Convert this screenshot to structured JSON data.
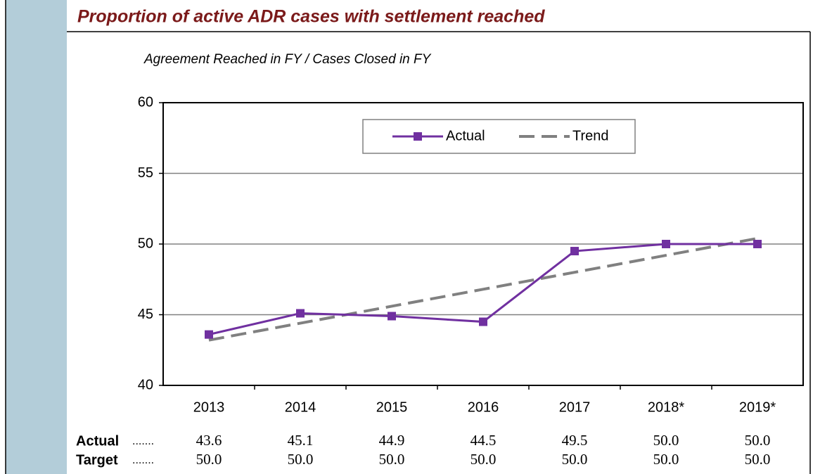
{
  "chart_data": {
    "type": "line",
    "title": "Proportion of active ADR cases with settlement reached",
    "subtitle": "Agreement Reached in FY / Cases Closed in FY",
    "categories": [
      "2013",
      "2014",
      "2015",
      "2016",
      "2017",
      "2018*",
      "2019*"
    ],
    "series": [
      {
        "name": "Actual",
        "color": "#7030a0",
        "values": [
          43.6,
          45.1,
          44.9,
          44.5,
          49.5,
          50,
          50
        ],
        "marker": "square"
      },
      {
        "name": "Trend",
        "color": "#808080",
        "values": [
          43.2,
          44.4,
          45.6,
          46.8,
          48.0,
          49.2,
          50.4
        ],
        "dashed": true
      }
    ],
    "ylim": [
      40,
      60
    ],
    "yticks": [
      40,
      45,
      50,
      55,
      60
    ],
    "grid": true,
    "legend": "top"
  },
  "table": {
    "rows": [
      {
        "label": "Actual",
        "leader": ".......",
        "cells": [
          "43.6",
          "45.1",
          "44.9",
          "44.5",
          "49.5",
          "50.0",
          "50.0"
        ]
      },
      {
        "label": "Target",
        "leader": ".......",
        "cells": [
          "50.0",
          "50.0",
          "50.0",
          "50.0",
          "50.0",
          "50.0",
          "50.0"
        ]
      }
    ]
  }
}
